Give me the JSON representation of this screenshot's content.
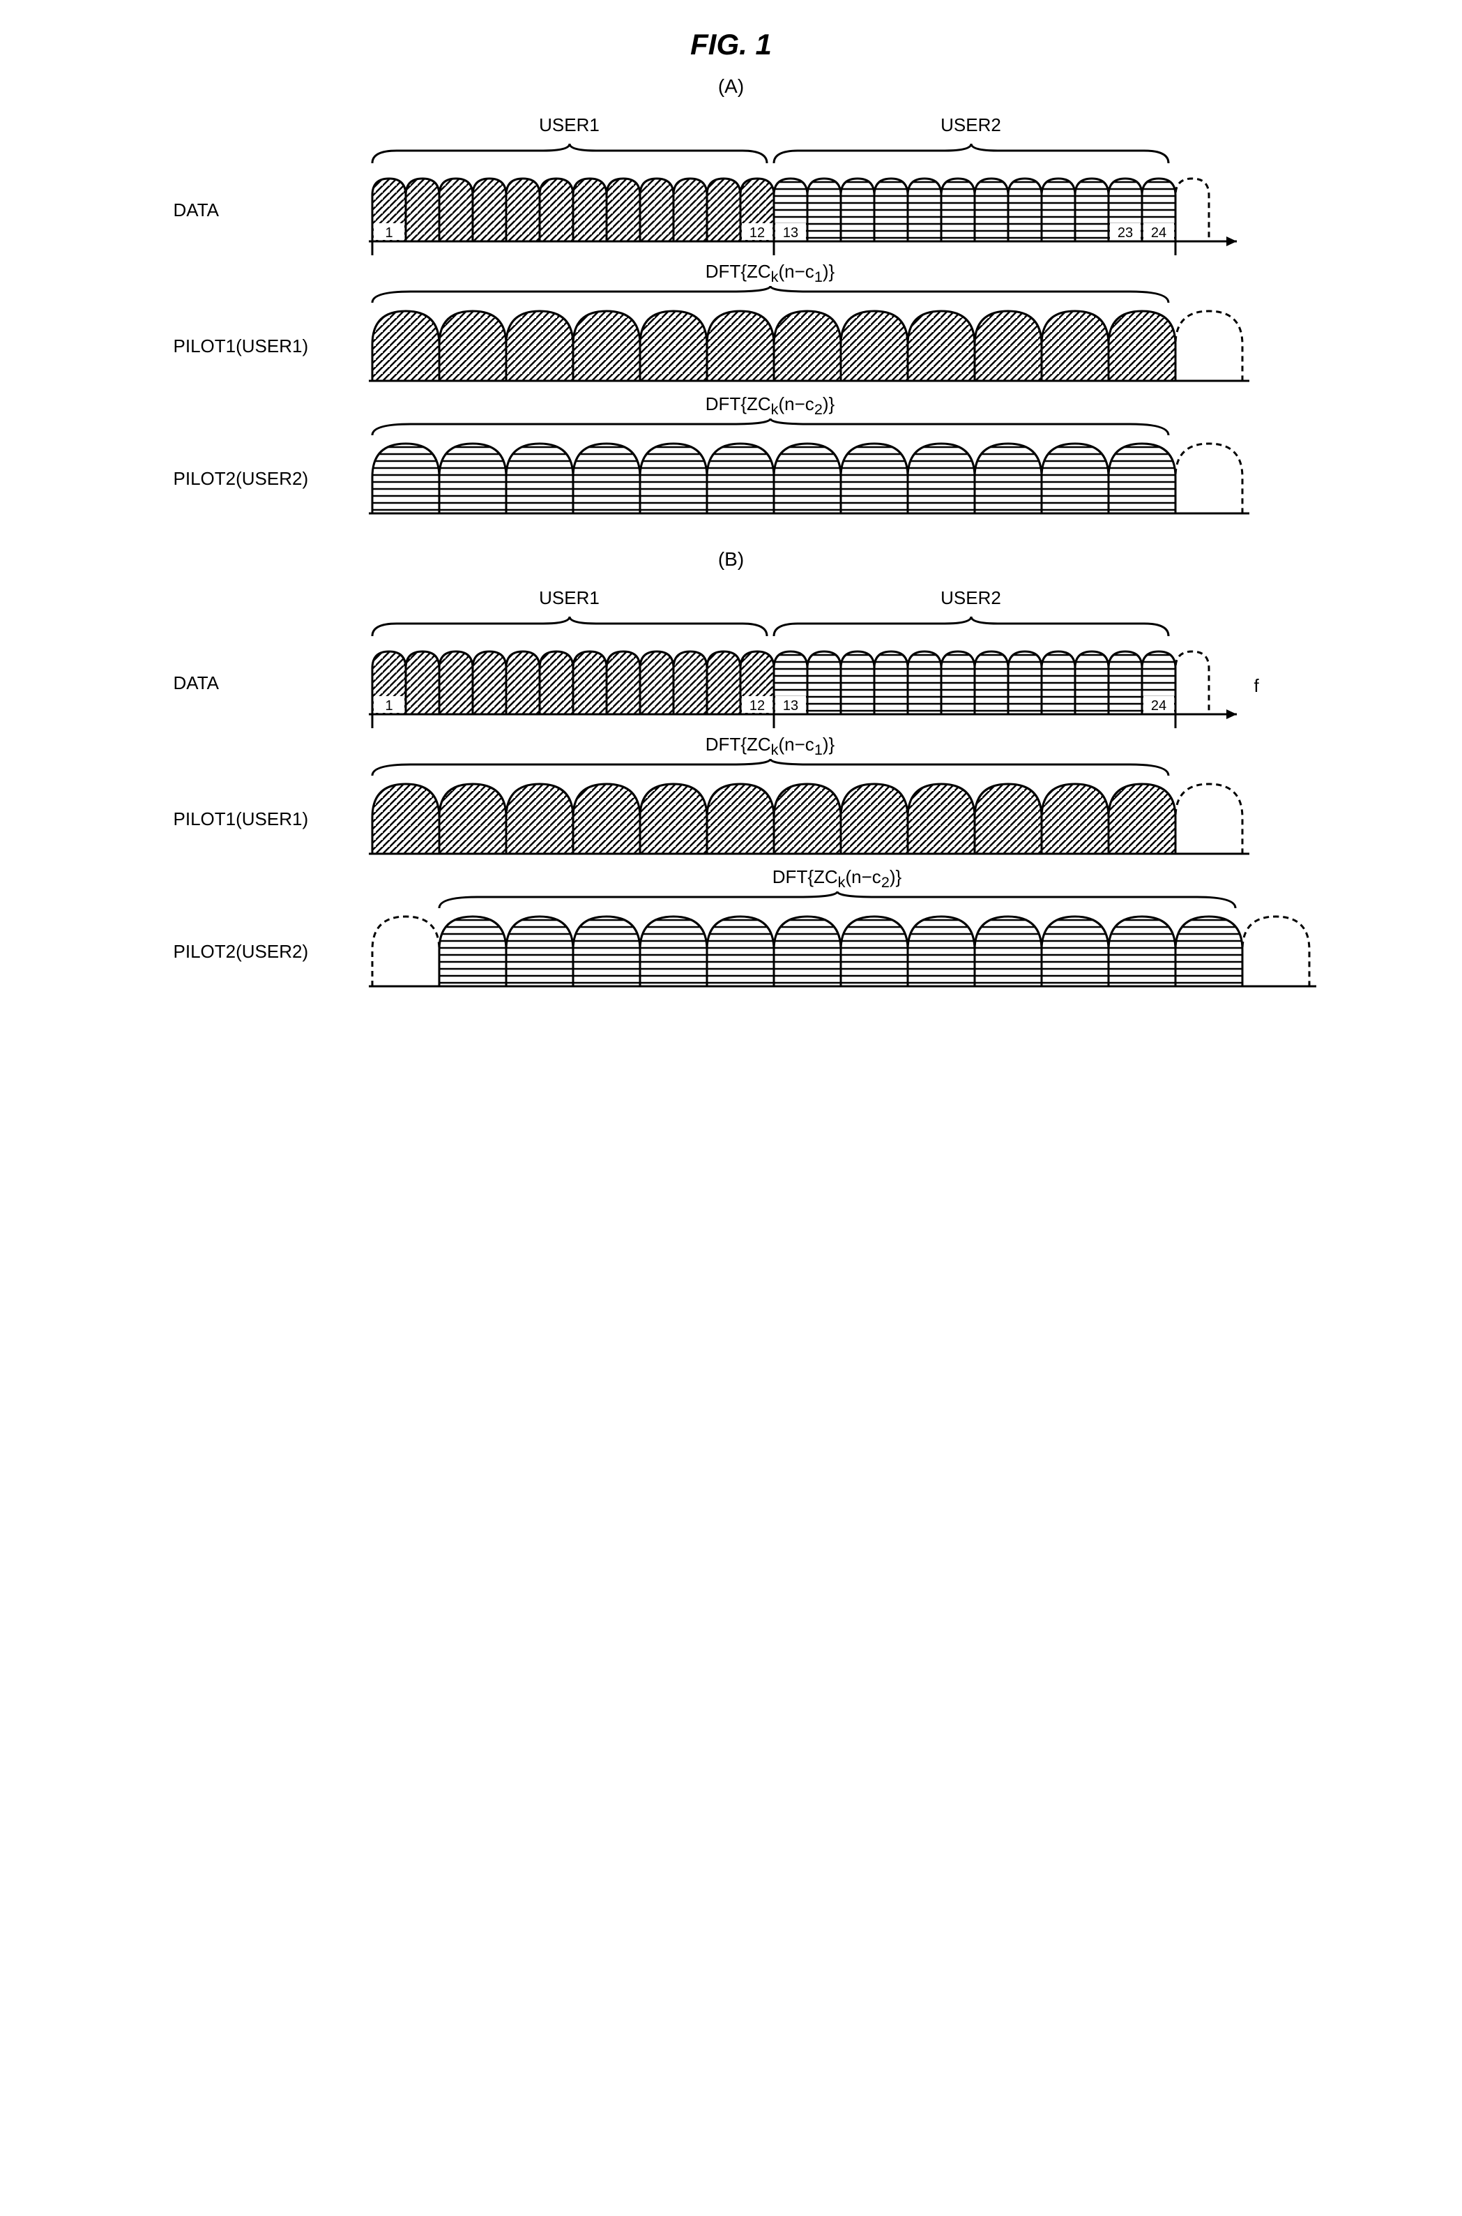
{
  "figure_title": "FIG. 1",
  "subfigs": {
    "A": {
      "label": "(A)",
      "rows": {
        "data": {
          "label": "DATA",
          "user1_label": "USER1",
          "user2_label": "USER2",
          "user1_count": 12,
          "user2_count": 12,
          "lobe_width_small": 48,
          "lobe_height": 90,
          "user1_labels": {
            "first": "1",
            "last": "12"
          },
          "user2_labels": {
            "first": "13",
            "last1": "23",
            "last2": "24"
          },
          "dashed_trailing": 1
        },
        "pilot1": {
          "label": "PILOT1(USER1)",
          "dft_label": "DFT{ZC",
          "dft_sub": "k",
          "dft_mid": "(n−c",
          "dft_sub2": "1",
          "dft_end": ")}",
          "lobe_count": 12,
          "lobe_width_large": 96,
          "lobe_height": 100,
          "offset": 0,
          "dashed_trailing": 1
        },
        "pilot2": {
          "label": "PILOT2(USER2)",
          "dft_label": "DFT{ZC",
          "dft_sub": "k",
          "dft_mid": "(n−c",
          "dft_sub2": "2",
          "dft_end": ")}",
          "lobe_count": 12,
          "lobe_width_large": 96,
          "lobe_height": 100,
          "offset": 0,
          "dashed_trailing": 1
        }
      }
    },
    "B": {
      "label": "(B)",
      "rows": {
        "data": {
          "label": "DATA",
          "user1_label": "USER1",
          "user2_label": "USER2",
          "user1_count": 12,
          "user2_count": 12,
          "lobe_width_small": 48,
          "lobe_height": 90,
          "user1_labels": {
            "first": "1",
            "last": "12"
          },
          "user2_labels": {
            "first": "13",
            "last": "24"
          },
          "dashed_trailing": 1,
          "axis_label": "f"
        },
        "pilot1": {
          "label": "PILOT1(USER1)",
          "dft_label": "DFT{ZC",
          "dft_sub": "k",
          "dft_mid": "(n−c",
          "dft_sub2": "1",
          "dft_end": ")}",
          "lobe_count": 12,
          "lobe_width_large": 96,
          "lobe_height": 100,
          "offset": 0,
          "dashed_trailing": 1
        },
        "pilot2": {
          "label": "PILOT2(USER2)",
          "dft_label": "DFT{ZC",
          "dft_sub": "k",
          "dft_mid": "(n−c",
          "dft_sub2": "2",
          "dft_end": ")}",
          "lobe_count": 12,
          "lobe_width_large": 96,
          "lobe_height": 100,
          "offset": 96,
          "dashed_leading": 1,
          "dashed_trailing": 1
        }
      }
    }
  },
  "colors": {
    "stroke": "#000000",
    "bg": "#ffffff"
  },
  "hatch": {
    "diag_spacing": 10,
    "horiz_spacing": 10,
    "stroke_width": 2.5
  }
}
